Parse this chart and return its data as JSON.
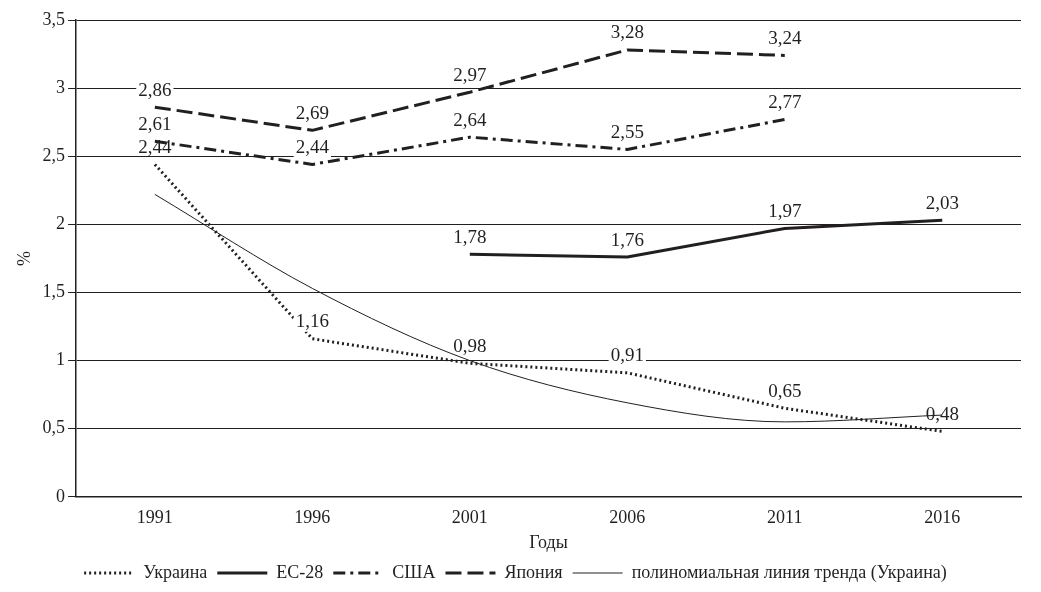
{
  "chart_data": {
    "type": "line",
    "xlabel": "Годы",
    "ylabel": "%",
    "categories": [
      "1991",
      "1996",
      "2001",
      "2006",
      "2011",
      "2016"
    ],
    "ylim": [
      0,
      3.5
    ],
    "yticks": [
      {
        "value": 0,
        "label": "0"
      },
      {
        "value": 0.5,
        "label": "0,5"
      },
      {
        "value": 1,
        "label": "1"
      },
      {
        "value": 1.5,
        "label": "1,5"
      },
      {
        "value": 2,
        "label": "2"
      },
      {
        "value": 2.5,
        "label": "2,5"
      },
      {
        "value": 3,
        "label": "3"
      },
      {
        "value": 3.5,
        "label": "3,5"
      }
    ],
    "grid": "y",
    "legend": "bottom",
    "marker": "none",
    "series": [
      {
        "name": "Украина",
        "color": "#231f20",
        "line_style": "dotted",
        "values": [
          2.44,
          1.16,
          0.98,
          0.91,
          0.65,
          0.48
        ],
        "value_labels": [
          "2,44",
          "1,16",
          "0,98",
          "0,91",
          "0,65",
          "0,48"
        ]
      },
      {
        "name": "ЕС-28",
        "color": "#231f20",
        "line_style": "solid",
        "values": [
          null,
          null,
          1.78,
          1.76,
          1.97,
          2.03
        ],
        "value_labels": [
          null,
          null,
          "1,78",
          "1,76",
          "1,97",
          "2,03"
        ]
      },
      {
        "name": "США",
        "color": "#231f20",
        "line_style": "dashdot",
        "values": [
          2.61,
          2.44,
          2.64,
          2.55,
          2.77,
          null
        ],
        "value_labels": [
          "2,61",
          "2,44",
          "2,64",
          "2,55",
          "2,77",
          null
        ]
      },
      {
        "name": "Япония",
        "color": "#231f20",
        "line_style": "dashed",
        "values": [
          2.86,
          2.69,
          2.97,
          3.28,
          3.24,
          null
        ],
        "value_labels": [
          "2,86",
          "2,69",
          "2,97",
          "3,28",
          "3,24",
          null
        ]
      },
      {
        "name": "полиномиальная линия тренда (Украина)",
        "color": "#231f20",
        "line_style": "solid",
        "values": [
          2.22,
          1.53,
          1.0,
          0.69,
          0.55,
          0.6
        ]
      }
    ]
  }
}
